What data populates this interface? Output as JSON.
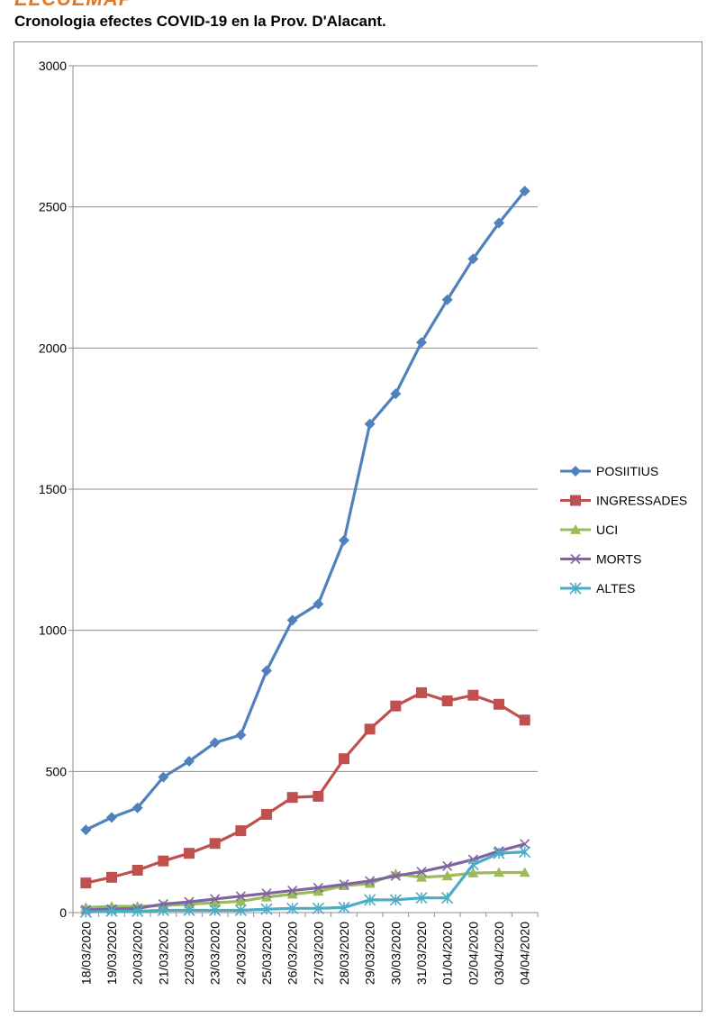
{
  "header": {
    "brand": "ELCUEMAP",
    "title": "Cronologia efectes COVID-19 en la Prov. D'Alacant."
  },
  "chart_data": {
    "type": "line",
    "title": "",
    "xlabel": "",
    "ylabel": "",
    "ylim": [
      0,
      3000
    ],
    "yticks": [
      0,
      500,
      1000,
      1500,
      2000,
      2500,
      3000
    ],
    "grid": "horizontal",
    "legend_position": "right",
    "categories": [
      "18/03/2020",
      "19/03/2020",
      "20/03/2020",
      "21/03/2020",
      "22/03/2020",
      "23/03/2020",
      "24/03/2020",
      "25/03/2020",
      "26/03/2020",
      "27/03/2020",
      "28/03/2020",
      "29/03/2020",
      "30/03/2020",
      "31/03/2020",
      "01/04/2020",
      "02/04/2020",
      "03/04/2020",
      "04/04/2020"
    ],
    "series": [
      {
        "name": "POSIITIUS",
        "color": "#4f81bd",
        "marker": "diamond",
        "values": [
          293,
          337,
          371,
          480,
          536,
          602,
          629,
          857,
          1036,
          1093,
          1319,
          1731,
          1838,
          2020,
          2171,
          2316,
          2443,
          2556
        ]
      },
      {
        "name": "INGRESSADES",
        "color": "#c0504d",
        "marker": "square",
        "values": [
          105,
          125,
          150,
          183,
          210,
          245,
          290,
          348,
          408,
          412,
          545,
          650,
          732,
          779,
          750,
          770,
          738,
          682
        ]
      },
      {
        "name": "UCI",
        "color": "#9bbb59",
        "marker": "triangle",
        "values": [
          18,
          22,
          22,
          25,
          30,
          35,
          40,
          55,
          65,
          75,
          95,
          103,
          137,
          125,
          130,
          140,
          142,
          142
        ]
      },
      {
        "name": "MORTS",
        "color": "#8064a2",
        "marker": "x",
        "values": [
          10,
          12,
          15,
          30,
          38,
          48,
          58,
          68,
          78,
          88,
          100,
          112,
          130,
          145,
          165,
          188,
          218,
          243
        ]
      },
      {
        "name": "ALTES",
        "color": "#4bacc6",
        "marker": "star",
        "values": [
          2,
          5,
          5,
          8,
          8,
          8,
          8,
          12,
          15,
          15,
          18,
          45,
          45,
          52,
          52,
          170,
          210,
          215
        ]
      }
    ]
  }
}
